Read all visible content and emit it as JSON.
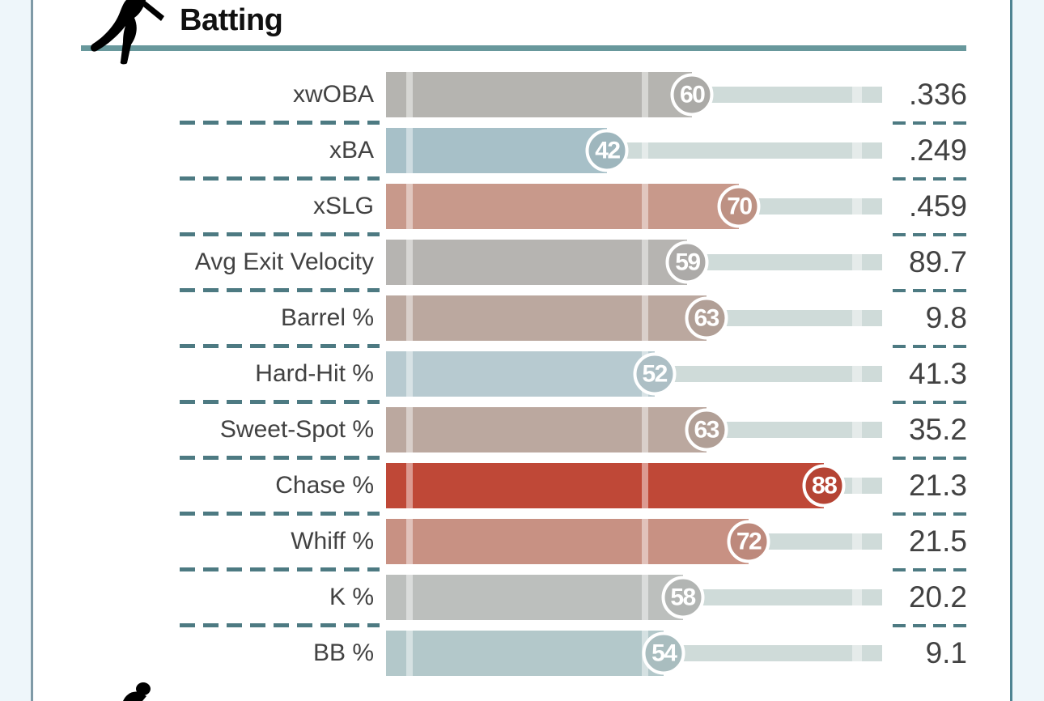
{
  "header": {
    "section_title": "Batting",
    "icon": "batter-swing-icon"
  },
  "footer": {
    "icon": "next-section-runner-icon"
  },
  "colors": {
    "section_rule_teal": "#68989c",
    "separator_dash_teal": "#4d7a82",
    "label_text": "#424242",
    "title_text": "#111111",
    "page_left_border": "#7f9aa7",
    "page_right_border": "#4f8492",
    "page_margin_bg": "#eef6fa",
    "bubble_ring": "#ffffff"
  },
  "chart_data": {
    "type": "bar",
    "variant": "percentile-rankings",
    "title": "Batting",
    "orientation": "horizontal",
    "axis": {
      "min_percentile": 0,
      "max_percentile": 100,
      "reference_markers_percentile": [
        0,
        50,
        95
      ],
      "grid": false
    },
    "track_color": "#cfdbd9",
    "rows": [
      {
        "metric": "xwOBA",
        "percentile": 60,
        "value": ".336",
        "bar_color": "#b5b4b0"
      },
      {
        "metric": "xBA",
        "percentile": 42,
        "value": ".249",
        "bar_color": "#a7c0c8"
      },
      {
        "metric": "xSLG",
        "percentile": 70,
        "value": ".459",
        "bar_color": "#c8998b"
      },
      {
        "metric": "Avg Exit Velocity",
        "percentile": 59,
        "value": "89.7",
        "bar_color": "#b6b4b1"
      },
      {
        "metric": "Barrel %",
        "percentile": 63,
        "value": "9.8",
        "bar_color": "#bba89f"
      },
      {
        "metric": "Hard-Hit %",
        "percentile": 52,
        "value": "41.3",
        "bar_color": "#b7cad0"
      },
      {
        "metric": "Sweet-Spot %",
        "percentile": 63,
        "value": "35.2",
        "bar_color": "#bba89f"
      },
      {
        "metric": "Chase %",
        "percentile": 88,
        "value": "21.3",
        "bar_color": "#bf4837"
      },
      {
        "metric": "Whiff %",
        "percentile": 72,
        "value": "21.5",
        "bar_color": "#c89183"
      },
      {
        "metric": "K %",
        "percentile": 58,
        "value": "20.2",
        "bar_color": "#bcbfbd"
      },
      {
        "metric": "BB %",
        "percentile": 54,
        "value": "9.1",
        "bar_color": "#b3c8ca"
      }
    ]
  }
}
